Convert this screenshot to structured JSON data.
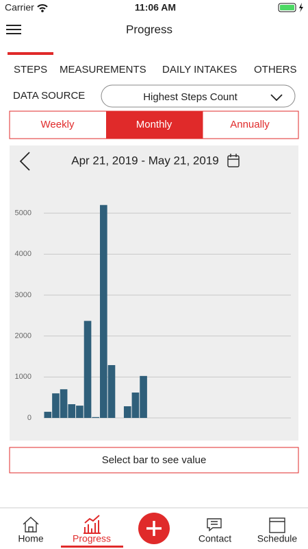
{
  "status_bar": {
    "carrier": "Carrier",
    "time": "11:06 AM"
  },
  "header": {
    "title": "Progress"
  },
  "tabs": [
    "STEPS",
    "MEASUREMENTS",
    "DAILY INTAKES",
    "OTHERS"
  ],
  "data_source": {
    "label": "DATA SOURCE",
    "value": "Highest Steps Count"
  },
  "periods": [
    "Weekly",
    "Monthly",
    "Annually"
  ],
  "chart_data": {
    "type": "bar",
    "date_range": "Apr 21, 2019 - May 21, 2019",
    "categories": [
      null,
      null,
      null,
      null,
      null,
      null,
      null,
      null,
      null,
      null,
      null,
      null,
      null,
      null,
      null,
      null,
      null,
      null,
      null,
      null,
      null,
      null,
      null,
      null,
      null,
      null,
      null,
      null,
      null,
      null,
      null
    ],
    "values": [
      150,
      600,
      700,
      335,
      300,
      2370,
      20,
      5200,
      1290,
      0,
      285,
      620,
      1025,
      0,
      0,
      0,
      0,
      0,
      0,
      0,
      0,
      0,
      0,
      0,
      0,
      0,
      0,
      0,
      0,
      0,
      0
    ],
    "color": "#2f5f7a",
    "ylim": [
      0,
      6000
    ],
    "yticks": [
      0,
      1000,
      2000,
      3000,
      4000,
      5000
    ],
    "grid": true
  },
  "hint": "Select bar to see value",
  "nav": [
    "Home",
    "Progress",
    "Contact",
    "Schedule"
  ]
}
